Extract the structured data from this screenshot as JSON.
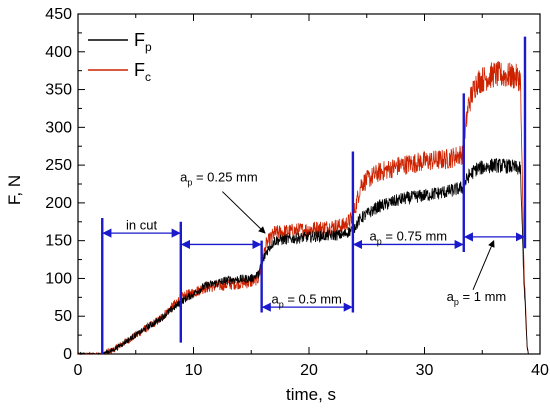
{
  "chart_data": {
    "type": "line",
    "xlabel": "time, s",
    "ylabel": "F, N",
    "xlim": [
      0,
      40
    ],
    "ylim": [
      0,
      450
    ],
    "xticks": [
      0,
      10,
      20,
      30,
      40
    ],
    "yticks": [
      0,
      50,
      100,
      150,
      200,
      250,
      300,
      350,
      400,
      450
    ],
    "grid": false,
    "legend": "top-left",
    "series": [
      {
        "name": "F_p",
        "label_main": "F",
        "label_sub": "p",
        "color": "#000000",
        "x": [
          0,
          2,
          3,
          5,
          7,
          9,
          11,
          13,
          15,
          15.6,
          16.3,
          17,
          20,
          23,
          23.8,
          24.5,
          26,
          28,
          30,
          32,
          33.3,
          33.8,
          34.5,
          36,
          37.5,
          38.3,
          38.6,
          38.9,
          39
        ],
        "y": [
          0,
          0,
          5,
          25,
          45,
          70,
          90,
          98,
          100,
          105,
          135,
          150,
          155,
          158,
          165,
          180,
          195,
          205,
          210,
          215,
          220,
          235,
          245,
          250,
          248,
          245,
          100,
          5,
          0
        ]
      },
      {
        "name": "F_c",
        "label_main": "F",
        "label_sub": "c",
        "color": "#cc2200",
        "x": [
          0,
          2,
          3,
          5,
          7,
          9,
          11,
          13,
          15,
          15.6,
          16.3,
          17,
          20,
          23,
          23.8,
          24.5,
          26,
          28,
          30,
          32,
          33.3,
          33.8,
          34.5,
          36,
          37.5,
          38.3,
          38.6,
          38.9,
          39
        ],
        "y": [
          0,
          0,
          5,
          25,
          45,
          75,
          88,
          92,
          95,
          100,
          145,
          160,
          165,
          170,
          180,
          225,
          240,
          250,
          255,
          258,
          265,
          330,
          360,
          370,
          368,
          365,
          120,
          5,
          0
        ]
      }
    ],
    "markers": [
      {
        "x": 2.1,
        "y_top": 180,
        "y_bottom": 0
      },
      {
        "x": 8.9,
        "y_top": 175,
        "y_bottom": 15
      },
      {
        "x": 15.9,
        "y_top": 150,
        "y_bottom": 55
      },
      {
        "x": 23.8,
        "y_top": 268,
        "y_bottom": 55
      },
      {
        "x": 33.4,
        "y_top": 345,
        "y_bottom": 135
      },
      {
        "x": 38.7,
        "y_top": 420,
        "y_bottom": 140
      }
    ],
    "spans": [
      {
        "x1": 2.1,
        "x2": 8.9,
        "y": 160
      },
      {
        "x1": 8.9,
        "x2": 15.9,
        "y": 145
      },
      {
        "x1": 15.9,
        "x2": 23.8,
        "y": 62
      },
      {
        "x1": 23.8,
        "x2": 33.4,
        "y": 145
      },
      {
        "x1": 33.4,
        "x2": 38.7,
        "y": 155
      }
    ],
    "annotations": [
      {
        "id": "in-cut",
        "main": "in cut",
        "sub": "",
        "rest": "",
        "x": 5.5,
        "y": 165,
        "anchor": "middle"
      },
      {
        "id": "ap-025",
        "main": "a",
        "sub": "p",
        "rest": "= 0.25 mm",
        "x": 12.2,
        "y": 228,
        "anchor": "middle",
        "arrow_from": [
          12.5,
          215
        ],
        "arrow_to": [
          16.2,
          160
        ]
      },
      {
        "id": "ap-05",
        "main": "a",
        "sub": "p",
        "rest": "= 0.5 mm",
        "x": 19.8,
        "y": 67,
        "anchor": "middle"
      },
      {
        "id": "ap-075",
        "main": "a",
        "sub": "p",
        "rest": "= 0.75 mm",
        "x": 28.6,
        "y": 150,
        "anchor": "middle"
      },
      {
        "id": "ap-1",
        "main": "a",
        "sub": "p",
        "rest": "= 1 mm",
        "x": 34.5,
        "y": 70,
        "anchor": "middle",
        "arrow_from": [
          34.2,
          85
        ],
        "arrow_to": [
          36,
          150
        ]
      }
    ]
  }
}
